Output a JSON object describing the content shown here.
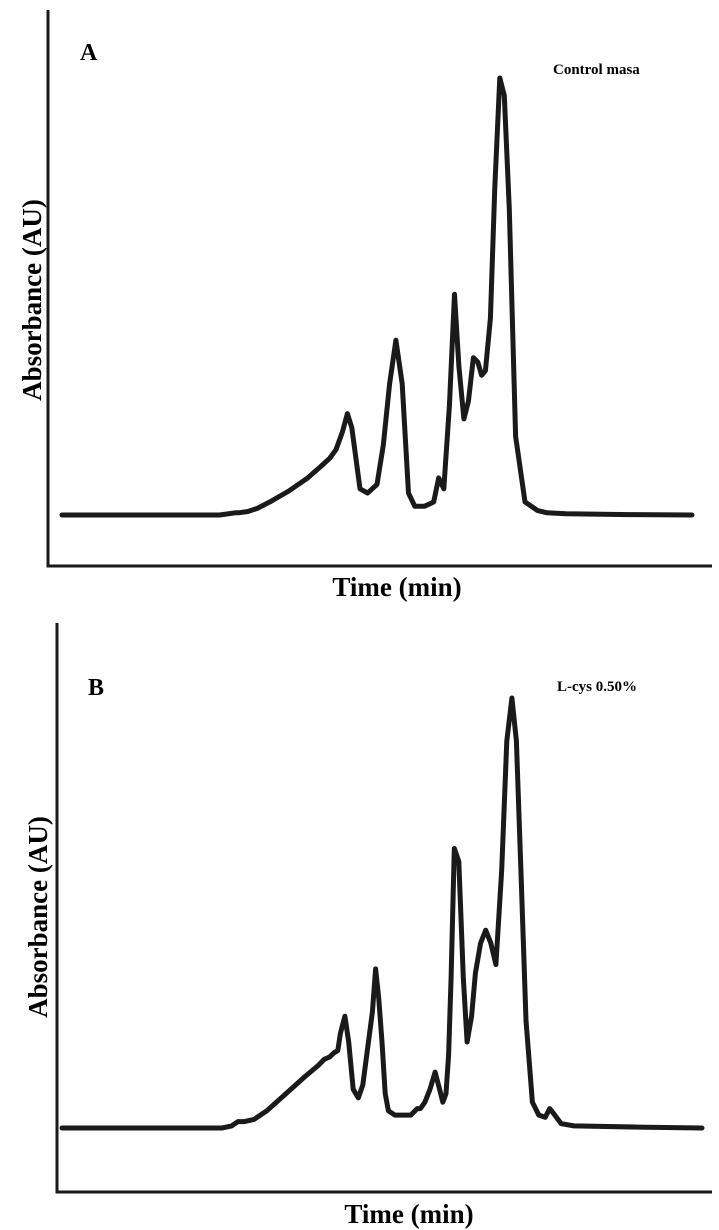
{
  "figure": {
    "panels": [
      {
        "letter": "A",
        "title": "Control masa"
      },
      {
        "letter": "B",
        "title": "L-cys 0.50%"
      }
    ]
  },
  "chart_data": [
    {
      "type": "line",
      "panel": "A",
      "title": "Control masa",
      "xlabel": "Time (min)",
      "ylabel": "Absorbance (AU)",
      "ticks": "none",
      "grid": false,
      "xlim": [
        0,
        100
      ],
      "ylim": [
        0,
        100
      ],
      "line_color": "#1a1a1a",
      "x": [
        0,
        15,
        25,
        27.5,
        28,
        29.5,
        31,
        33,
        36,
        39,
        41,
        42.5,
        43.5,
        44.5,
        45.3,
        46,
        47.3,
        48.5,
        50,
        51,
        52,
        53,
        54,
        55,
        56,
        56.5,
        57,
        57.5,
        58.3,
        59,
        59.8,
        60.6,
        61.5,
        62.3,
        63,
        63.8,
        64.5,
        65.3,
        66,
        66.6,
        67.2,
        68,
        68.7,
        69.5,
        70.2,
        71,
        72,
        73.5,
        74.5,
        75.5,
        77,
        80,
        90,
        100
      ],
      "y": [
        0,
        0,
        0,
        0.5,
        0.5,
        0.8,
        1.5,
        3,
        5.5,
        8.5,
        11,
        13,
        15,
        19,
        23.2,
        20,
        6,
        5,
        7,
        16,
        30,
        40,
        30,
        5,
        2,
        2,
        2,
        2,
        2.5,
        3,
        8.5,
        6,
        25,
        50.5,
        34,
        22,
        26,
        36,
        35,
        32,
        33,
        45,
        75,
        100,
        96,
        70,
        18,
        3,
        2,
        1,
        0.5,
        0.3,
        0.1,
        0
      ],
      "annotations": []
    },
    {
      "type": "line",
      "panel": "B",
      "title": "L-cys 0.50%",
      "xlabel": "Time (min)",
      "ylabel": "Absorbance (AU)",
      "ticks": "none",
      "grid": false,
      "xlim": [
        0,
        100
      ],
      "ylim": [
        0,
        100
      ],
      "line_color": "#1a1a1a",
      "x": [
        0,
        15,
        25,
        26.5,
        27.5,
        28.5,
        30,
        32,
        35,
        38,
        40,
        41,
        41.8,
        42.5,
        43.1,
        43.5,
        44.2,
        44.8,
        45.5,
        46.3,
        47,
        48.5,
        49,
        49.5,
        50,
        50.5,
        51,
        52,
        53,
        54.5,
        55.5,
        56,
        56.7,
        57.5,
        58.3,
        59,
        59.5,
        60,
        60.4,
        60.8,
        61.3,
        62,
        62.7,
        63.3,
        64,
        64.6,
        65.4,
        66.2,
        67,
        67.8,
        68.7,
        69.5,
        70.3,
        71,
        71.7,
        72.5,
        73.5,
        74.5,
        75.5,
        76.2,
        77,
        78,
        80,
        90,
        100
      ],
      "y": [
        0,
        0,
        0,
        0.5,
        1.5,
        1.5,
        2,
        4,
        8,
        12,
        14.5,
        16,
        16.5,
        17.5,
        18,
        22,
        26,
        20,
        9,
        7,
        10,
        27,
        37,
        30,
        20,
        8,
        4,
        3,
        3,
        3,
        4.5,
        4.5,
        6,
        9,
        13,
        9,
        6,
        8,
        17,
        35,
        65,
        62,
        35,
        20,
        26,
        36,
        43,
        46,
        43,
        38,
        60,
        90,
        100,
        90,
        60,
        25,
        6,
        3,
        2.5,
        4.5,
        3,
        1,
        0.5,
        0.2,
        0
      ]
    }
  ]
}
